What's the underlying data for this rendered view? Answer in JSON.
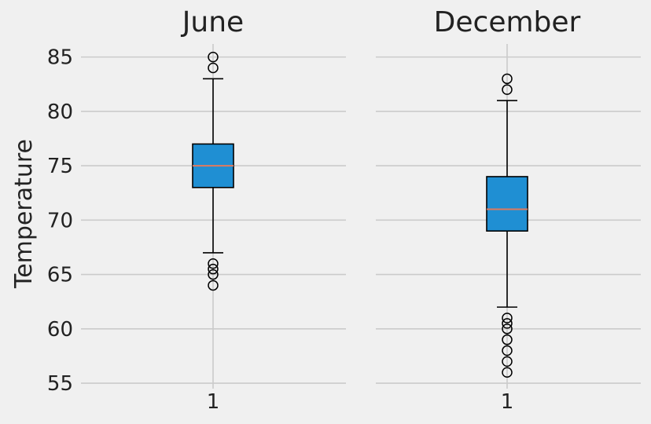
{
  "chart_data": {
    "type": "box",
    "ylabel": "Temperature",
    "ylim": [
      54.5,
      86.2
    ],
    "yticks": [
      55,
      60,
      65,
      70,
      75,
      80,
      85
    ],
    "grid": true,
    "colors": {
      "background": "#f0f0f0",
      "grid": "#cbcbcb",
      "box_fill": "#1f8fd3",
      "median": "#e0795e",
      "outline": "#000000",
      "text": "#222222"
    },
    "panels": [
      {
        "title": "June",
        "categories": [
          "1"
        ],
        "box": {
          "whisker_low": 67,
          "q1": 73,
          "median": 75,
          "q3": 77,
          "whisker_high": 83,
          "outliers": [
            64,
            65,
            65.5,
            66,
            84,
            85
          ]
        }
      },
      {
        "title": "December",
        "categories": [
          "1"
        ],
        "box": {
          "whisker_low": 62,
          "q1": 69,
          "median": 71,
          "q3": 74,
          "whisker_high": 81,
          "outliers": [
            56,
            57,
            58,
            59,
            60,
            60.5,
            61,
            82,
            83
          ]
        }
      }
    ]
  }
}
